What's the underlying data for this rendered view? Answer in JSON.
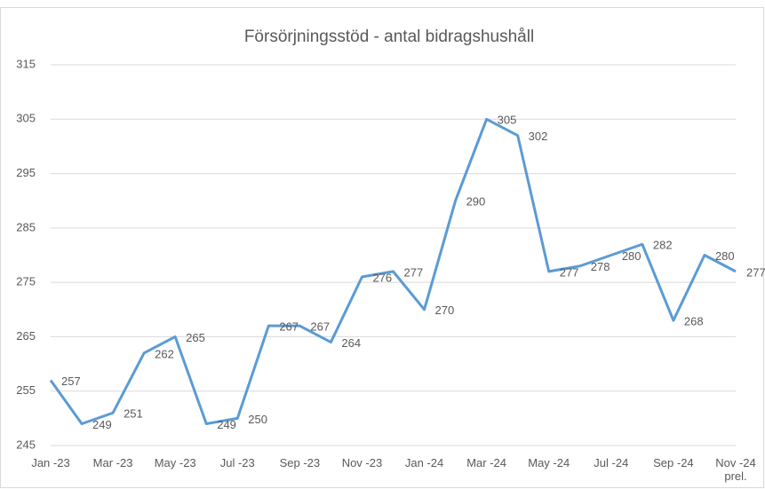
{
  "chart_data": {
    "type": "line",
    "title": "Försörjningsstöd - antal bidragshushåll",
    "categories": [
      "Jan -23",
      null,
      "Mar -23",
      null,
      "May -23",
      null,
      "Jul -23",
      null,
      "Sep -23",
      null,
      "Nov -23",
      null,
      "Jan -24",
      null,
      "Mar -24",
      null,
      "May -24",
      null,
      "Jul -24",
      null,
      "Sep -24",
      null,
      "Nov -24\nprel."
    ],
    "series": [
      {
        "color": "#5b9bd5",
        "values": [
          257,
          249,
          251,
          262,
          265,
          249,
          250,
          267,
          267,
          264,
          276,
          277,
          270,
          290,
          305,
          302,
          277,
          278,
          280,
          282,
          268,
          280,
          277
        ]
      }
    ],
    "ylim": [
      245,
      315
    ],
    "yticks": [
      245,
      255,
      265,
      275,
      285,
      295,
      305,
      315
    ],
    "grid": true
  }
}
